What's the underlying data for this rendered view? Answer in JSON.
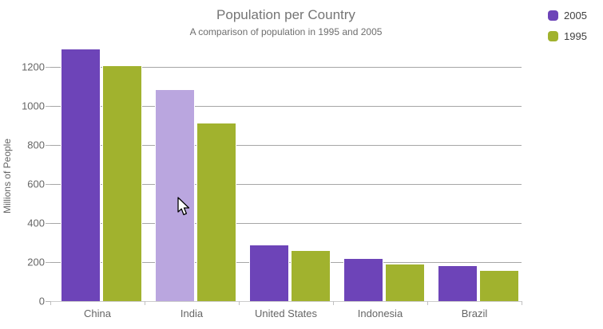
{
  "header": {
    "title": "Population per Country",
    "subtitle": "A comparison of population in 1995 and 2005"
  },
  "legend": {
    "position": "top-right",
    "items": [
      {
        "label": "2005",
        "color": "#6D44B8"
      },
      {
        "label": "1995",
        "color": "#A1B22E"
      }
    ]
  },
  "chart_data": {
    "type": "bar",
    "title": "Population per Country",
    "subtitle": "A comparison of population in 1995 and 2005",
    "categories": [
      "China",
      "India",
      "United States",
      "Indonesia",
      "Brazil"
    ],
    "series": [
      {
        "name": "2005",
        "color": "#6D44B8",
        "values": [
          1295,
          1085,
          290,
          222,
          184
        ]
      },
      {
        "name": "1995",
        "color": "#A1B22E",
        "values": [
          1210,
          915,
          262,
          193,
          158
        ]
      }
    ],
    "hovered_bar": {
      "series": "2005",
      "category": "India",
      "hover_color": "#BAA6DF"
    },
    "xlabel": "",
    "ylabel": "Millions of People",
    "yticks": [
      0,
      200,
      400,
      600,
      800,
      1000,
      1200
    ],
    "ylim": [
      0,
      1200
    ],
    "grid": true,
    "legend_position": "top-right",
    "colors": {
      "grid": "#a6a6a6",
      "axis_text": "#666666",
      "title_text": "#757575"
    }
  }
}
